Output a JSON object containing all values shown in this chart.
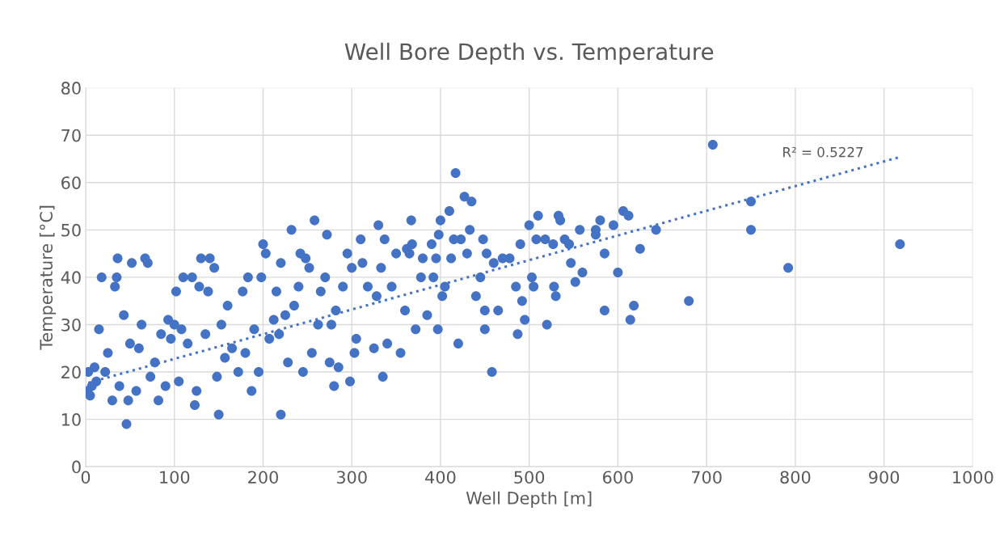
{
  "chart_data": {
    "type": "scatter",
    "title": "Well Bore Depth vs. Temperature",
    "xlabel": "Well Depth [m]",
    "ylabel": "Temperature [°C]",
    "xlim": [
      0,
      1000
    ],
    "xticks": [
      0,
      100,
      200,
      300,
      400,
      500,
      600,
      700,
      800,
      900,
      1000
    ],
    "ylim": [
      0,
      80
    ],
    "yticks": [
      0,
      10,
      20,
      30,
      40,
      50,
      60,
      70,
      80
    ],
    "grid": true,
    "legend": false,
    "series": [
      {
        "marker": "circle",
        "color": "#4472c4",
        "x": [
          918,
          792,
          750,
          750,
          707,
          680,
          643,
          625,
          618,
          614,
          612,
          606,
          600,
          595,
          585,
          585,
          580,
          575,
          575,
          560,
          557,
          552,
          547,
          545,
          540,
          535,
          533,
          530,
          528,
          527,
          520,
          518,
          510,
          508,
          505,
          503,
          500,
          495,
          492,
          490,
          487,
          485,
          478,
          470,
          465,
          460,
          458,
          452,
          450,
          450,
          448,
          445,
          440,
          435,
          433,
          430,
          427,
          423,
          420,
          417,
          415,
          412,
          410,
          405,
          402,
          400,
          398,
          397,
          395,
          392,
          390,
          385,
          380,
          378,
          372,
          368,
          367,
          365,
          362,
          360,
          355,
          350,
          345,
          340,
          337,
          335,
          333,
          330,
          328,
          325,
          318,
          312,
          310,
          305,
          303,
          300,
          298,
          295,
          290,
          285,
          282,
          280,
          277,
          275,
          272,
          270,
          265,
          262,
          258,
          255,
          252,
          248,
          245,
          242,
          240,
          235,
          232,
          228,
          225,
          220,
          220,
          218,
          215,
          212,
          207,
          203,
          200,
          198,
          195,
          190,
          187,
          183,
          180,
          177,
          172,
          165,
          160,
          157,
          153,
          150,
          148,
          145,
          140,
          138,
          135,
          130,
          128,
          125,
          123,
          120,
          115,
          110,
          108,
          105,
          102,
          100,
          96,
          93,
          90,
          85,
          82,
          78,
          73,
          70,
          67,
          63,
          60,
          57,
          52,
          50,
          48,
          46,
          43,
          38,
          36,
          35,
          33,
          30,
          25,
          22,
          18,
          15,
          12,
          10,
          7,
          5,
          3,
          2
        ],
        "values": [
          47,
          42,
          56,
          50,
          68,
          35,
          50,
          46,
          34,
          31,
          53,
          54,
          41,
          51,
          33,
          45,
          52,
          50,
          49,
          41,
          50,
          39,
          43,
          47,
          48,
          52,
          53,
          36,
          38,
          47,
          30,
          48,
          53,
          48,
          38,
          40,
          51,
          31,
          35,
          47,
          28,
          38,
          44,
          44,
          33,
          43,
          20,
          45,
          33,
          29,
          48,
          40,
          36,
          56,
          50,
          45,
          57,
          48,
          26,
          62,
          48,
          44,
          54,
          38,
          36,
          52,
          49,
          29,
          44,
          40,
          47,
          32,
          44,
          40,
          29,
          47,
          52,
          45,
          46,
          33,
          24,
          45,
          38,
          26,
          48,
          19,
          42,
          51,
          36,
          25,
          38,
          43,
          48,
          27,
          24,
          42,
          18,
          45,
          38,
          21,
          33,
          17,
          30,
          22,
          49,
          40,
          37,
          30,
          52,
          24,
          42,
          44,
          20,
          45,
          38,
          34,
          50,
          22,
          32,
          11,
          43,
          28,
          37,
          31,
          27,
          45,
          47,
          40,
          20,
          29,
          16,
          40,
          24,
          37,
          20,
          25,
          34,
          23,
          30,
          11,
          19,
          42,
          44,
          37,
          28,
          44,
          38,
          16,
          13,
          40,
          26,
          40,
          29,
          18,
          37,
          30,
          27,
          31,
          17,
          28,
          14,
          22,
          19,
          43,
          44,
          30,
          25,
          16,
          43,
          26,
          14,
          9,
          32,
          17,
          44,
          40,
          38,
          14,
          24,
          20,
          40,
          29,
          18,
          21,
          17,
          15,
          20,
          16
        ]
      },
      {
        "type": "line",
        "color": "#4472c4",
        "line_style": "dotted",
        "x": [
          3,
          918
        ],
        "values": [
          17.7,
          65.4
        ]
      }
    ],
    "annotations": [
      "R² = 0.5227"
    ]
  }
}
